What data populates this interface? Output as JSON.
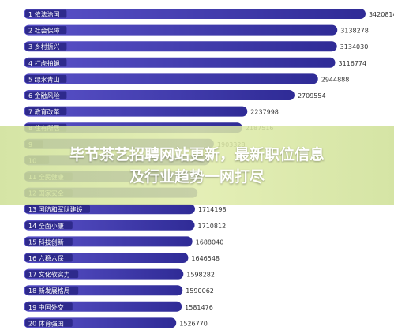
{
  "chart_data": {
    "type": "bar",
    "orientation": "horizontal",
    "categories": [
      "1 依法治国",
      "2 社会保障",
      "3 乡村振兴",
      "4 打虎拍蝇",
      "5 绿水青山",
      "6 金融风险",
      "7 教育改革",
      "8 住有所居",
      "9 ",
      "10 ",
      "11 全民健康",
      "12 国家安全",
      "13 国防和军队建设",
      "14 全面小康",
      "15 科技创新",
      "16 六稳六保",
      "17 文化软实力",
      "18 新发展格局",
      "19 中国外交",
      "20 体育强国"
    ],
    "values": [
      3420814,
      3138278,
      3134030,
      3116774,
      2944888,
      2709554,
      2237998,
      2187516,
      1903328,
      1860000,
      1780000,
      1740000,
      1714198,
      1710812,
      1688040,
      1646548,
      1598282,
      1590062,
      1581476,
      1526770
    ],
    "value_labels": [
      "3420814",
      "3138278",
      "3134030",
      "3116774",
      "2944888",
      "2709554",
      "2237998",
      "2187516",
      "1903328",
      "",
      "",
      "",
      "1714198",
      "1710812",
      "1688040",
      "1646548",
      "1598282",
      "1590062",
      "1581476",
      "1526770"
    ],
    "xlim": [
      0,
      3500000
    ],
    "colors": {
      "bar_start": "#5a52c9",
      "bar_end": "#2f2b96",
      "label_box": "#2e2a8c",
      "label_text": "#ffffff",
      "value_text": "#333333"
    }
  },
  "banner": {
    "line1": "毕节茶艺招聘网站更新，最新职位信息",
    "line2": "及行业趋势一网打尽"
  }
}
